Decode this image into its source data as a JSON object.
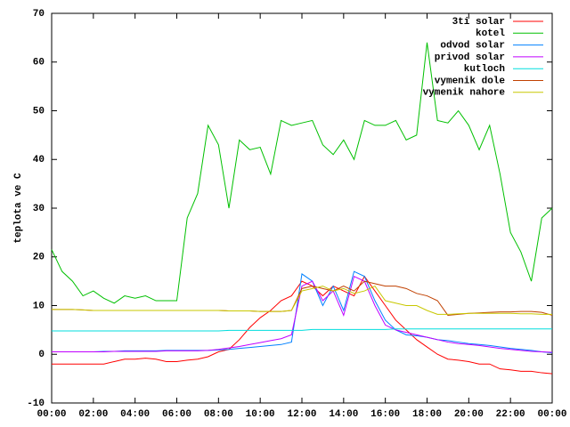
{
  "chart_data": {
    "type": "line",
    "ylabel": "teplota ve C",
    "x": [
      0,
      0.5,
      1,
      1.5,
      2,
      2.5,
      3,
      3.5,
      4,
      4.5,
      5,
      5.5,
      6,
      6.5,
      7,
      7.5,
      8,
      8.5,
      9,
      9.5,
      10,
      10.5,
      11,
      11.5,
      12,
      12.5,
      13,
      13.5,
      14,
      14.5,
      15,
      15.5,
      16,
      16.5,
      17,
      17.5,
      18,
      18.5,
      19,
      19.5,
      20,
      20.5,
      21,
      21.5,
      22,
      22.5,
      23,
      23.5,
      24
    ],
    "xlim": [
      0,
      24
    ],
    "xticks": [
      {
        "value": 0,
        "label": "00:00"
      },
      {
        "value": 2,
        "label": "02:00"
      },
      {
        "value": 4,
        "label": "04:00"
      },
      {
        "value": 6,
        "label": "06:00"
      },
      {
        "value": 8,
        "label": "08:00"
      },
      {
        "value": 10,
        "label": "10:00"
      },
      {
        "value": 12,
        "label": "12:00"
      },
      {
        "value": 14,
        "label": "14:00"
      },
      {
        "value": 16,
        "label": "16:00"
      },
      {
        "value": 18,
        "label": "18:00"
      },
      {
        "value": 20,
        "label": "20:00"
      },
      {
        "value": 22,
        "label": "22:00"
      },
      {
        "value": 24,
        "label": "00:00"
      }
    ],
    "ylim": [
      -10,
      70
    ],
    "yticks": [
      -10,
      0,
      10,
      20,
      30,
      40,
      50,
      60,
      70
    ],
    "grid": false,
    "legend": "top-right",
    "series": [
      {
        "name": "3ti solar",
        "color": "#ff0000",
        "values": [
          -2,
          -2,
          -2,
          -2,
          -2,
          -2,
          -1.5,
          -1,
          -1,
          -0.8,
          -1,
          -1.5,
          -1.5,
          -1.2,
          -1,
          -0.5,
          0.5,
          1,
          3,
          5.5,
          7.5,
          9,
          11,
          12,
          15,
          14,
          12,
          14,
          13,
          12,
          16,
          13,
          10,
          7,
          5,
          3,
          1.5,
          0,
          -1,
          -1.2,
          -1.5,
          -2,
          -2,
          -3,
          -3.2,
          -3.5,
          -3.5,
          -3.8,
          -4
        ]
      },
      {
        "name": "kotel",
        "color": "#00c000",
        "values": [
          21.5,
          17,
          15,
          12,
          13,
          11.5,
          10.5,
          12,
          11.5,
          12,
          11,
          11,
          11,
          28,
          33,
          47,
          43,
          30,
          44,
          42,
          42.5,
          37,
          48,
          47,
          47.5,
          48,
          43,
          41,
          44,
          40,
          48,
          47,
          47,
          48,
          44,
          45,
          64,
          48,
          47.5,
          50,
          47,
          42,
          47,
          37,
          25,
          21,
          15,
          28,
          30
        ]
      },
      {
        "name": "odvod solar",
        "color": "#0080ff",
        "values": [
          0.5,
          0.5,
          0.5,
          0.5,
          0.5,
          0.6,
          0.6,
          0.7,
          0.7,
          0.7,
          0.7,
          0.8,
          0.8,
          0.8,
          0.8,
          0.8,
          0.9,
          1,
          1.2,
          1.4,
          1.6,
          1.8,
          2,
          2.5,
          16.5,
          15,
          10,
          14,
          9,
          17,
          16,
          11,
          7,
          5,
          4,
          3.8,
          3.5,
          3,
          2.8,
          2.5,
          2.2,
          2,
          1.8,
          1.5,
          1.2,
          1,
          0.8,
          0.5,
          0.3
        ]
      },
      {
        "name": "privod solar",
        "color": "#c000ff",
        "values": [
          0.5,
          0.5,
          0.5,
          0.5,
          0.5,
          0.5,
          0.6,
          0.6,
          0.6,
          0.6,
          0.6,
          0.7,
          0.7,
          0.7,
          0.7,
          0.8,
          1,
          1.3,
          1.6,
          2,
          2.4,
          2.8,
          3.2,
          4,
          14,
          15,
          11,
          13,
          8,
          16,
          15,
          10,
          6,
          5,
          4.5,
          4,
          3.5,
          3,
          2.5,
          2.2,
          2,
          1.8,
          1.5,
          1.2,
          1,
          0.8,
          0.6,
          0.5,
          0.4
        ]
      },
      {
        "name": "kutloch",
        "color": "#00dddd",
        "values": [
          4.8,
          4.8,
          4.8,
          4.8,
          4.8,
          4.8,
          4.8,
          4.8,
          4.8,
          4.8,
          4.8,
          4.8,
          4.8,
          4.8,
          4.8,
          4.8,
          4.8,
          4.9,
          4.9,
          4.9,
          4.9,
          4.9,
          4.9,
          4.9,
          4.9,
          5.1,
          5.1,
          5.1,
          5.1,
          5.1,
          5.1,
          5.1,
          5.1,
          5.2,
          5.2,
          5.2,
          5.2,
          5.2,
          5.2,
          5.2,
          5.2,
          5.2,
          5.2,
          5.2,
          5.2,
          5.2,
          5.2,
          5.2,
          5.2
        ]
      },
      {
        "name": "vymenik dole",
        "color": "#c04000",
        "values": [
          9.2,
          9.2,
          9.2,
          9.1,
          9,
          9,
          9,
          9,
          9,
          9,
          9,
          9,
          9,
          9,
          9,
          9,
          9,
          8.9,
          8.9,
          8.9,
          8.8,
          8.8,
          8.8,
          9,
          13.5,
          14,
          13.5,
          13,
          14,
          13,
          15,
          14.5,
          14,
          14,
          13.5,
          12.5,
          12,
          11,
          8,
          8.2,
          8.4,
          8.5,
          8.6,
          8.7,
          8.7,
          8.8,
          8.8,
          8.6,
          8
        ]
      },
      {
        "name": "vymenik nahore",
        "color": "#c8c800",
        "values": [
          9.2,
          9.2,
          9.2,
          9.1,
          9,
          9,
          9,
          9,
          9,
          9,
          9,
          9,
          9,
          9,
          9,
          9,
          9,
          8.9,
          8.9,
          8.9,
          8.8,
          8.8,
          8.8,
          9,
          13,
          13.5,
          14,
          13,
          13.5,
          12.5,
          13,
          14,
          11,
          10.5,
          10,
          10,
          9,
          8.2,
          8.2,
          8.3,
          8.4,
          8.4,
          8.4,
          8.4,
          8.4,
          8.3,
          8.3,
          8.2,
          8.2
        ]
      }
    ]
  }
}
